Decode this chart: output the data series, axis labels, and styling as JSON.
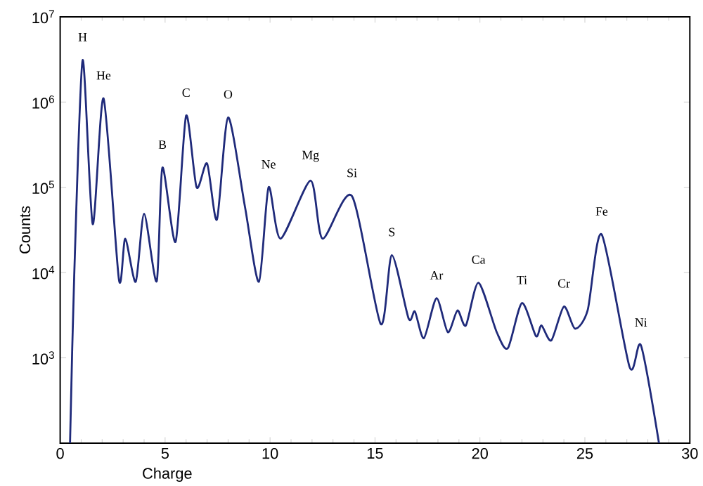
{
  "chart_data": {
    "type": "line",
    "xlabel": "Charge",
    "ylabel": "Counts",
    "log": "y",
    "xlim": [
      0,
      30
    ],
    "xticks": [
      0,
      5,
      10,
      15,
      20,
      25,
      30
    ],
    "ylim": [
      100,
      10000000
    ],
    "yticks": [
      {
        "value": 100,
        "label": null
      },
      {
        "value": 1000,
        "label": "10$^{3}$"
      },
      {
        "value": 10000,
        "label": "10$^{4}$"
      },
      {
        "value": 100000,
        "label": "10$^{5}$"
      },
      {
        "value": 1000000,
        "label": "10$^{6}$"
      },
      {
        "value": 10000000,
        "label": "10$^{7}$"
      }
    ],
    "grid": false,
    "marker": "none",
    "line_style": "solid",
    "series": [
      {
        "color": "#1f2a7a",
        "x": [
          0.47,
          0.67,
          1.07,
          1.55,
          2.07,
          2.8,
          3.1,
          3.6,
          4.0,
          4.6,
          4.87,
          5.5,
          6.0,
          6.5,
          7.0,
          7.47,
          8.0,
          8.8,
          9.47,
          9.93,
          10.5,
          11.93,
          12.5,
          13.9,
          15.27,
          15.8,
          16.6,
          16.9,
          17.33,
          17.93,
          18.47,
          18.93,
          19.33,
          19.93,
          20.8,
          21.33,
          22.0,
          22.67,
          22.93,
          23.4,
          24.0,
          24.53,
          25.13,
          25.8,
          27.13,
          27.67,
          28.53
        ],
        "values": [
          100,
          9300,
          3100000,
          37000,
          1100000,
          8300,
          25000,
          7800,
          49000,
          7900,
          170000,
          23000,
          690000,
          100000,
          190000,
          42000,
          660000,
          60000,
          7800,
          100000,
          25000,
          120000,
          25000,
          79000,
          2500,
          16000,
          2900,
          3500,
          1700,
          5000,
          2000,
          3600,
          2400,
          7600,
          2000,
          1300,
          4400,
          1800,
          2400,
          1600,
          4000,
          2200,
          3600,
          28000,
          780,
          1400,
          100
        ]
      }
    ],
    "annotations": [
      {
        "text": "H",
        "x": 1.07,
        "y": 3100000
      },
      {
        "text": "He",
        "x": 2.07,
        "y": 1100000
      },
      {
        "text": "B",
        "x": 4.87,
        "y": 170000
      },
      {
        "text": "C",
        "x": 6.0,
        "y": 690000
      },
      {
        "text": "O",
        "x": 8.0,
        "y": 660000
      },
      {
        "text": "Ne",
        "x": 9.93,
        "y": 100000
      },
      {
        "text": "Mg",
        "x": 11.93,
        "y": 120000
      },
      {
        "text": "Si",
        "x": 13.9,
        "y": 79000
      },
      {
        "text": "S",
        "x": 15.8,
        "y": 16000
      },
      {
        "text": "Ar",
        "x": 17.93,
        "y": 5000
      },
      {
        "text": "Ca",
        "x": 19.93,
        "y": 7600
      },
      {
        "text": "Ti",
        "x": 22.0,
        "y": 4400
      },
      {
        "text": "Cr",
        "x": 24.0,
        "y": 4000
      },
      {
        "text": "Fe",
        "x": 25.8,
        "y": 28000
      },
      {
        "text": "Ni",
        "x": 27.67,
        "y": 1400
      }
    ]
  }
}
